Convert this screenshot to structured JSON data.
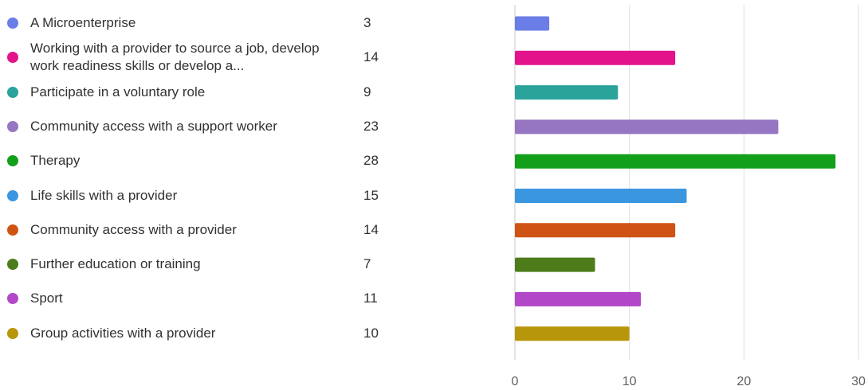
{
  "chart_data": {
    "type": "bar",
    "orientation": "horizontal",
    "categories": [
      "A Microenterprise",
      "Working with a provider to source a job, develop work readiness skills or develop a...",
      "Participate in a voluntary role",
      "Community access with a support worker",
      "Therapy",
      "Life skills with a provider",
      "Community access with a provider",
      "Further education or training",
      "Sport",
      "Group activities with a provider"
    ],
    "values": [
      3,
      14,
      9,
      23,
      28,
      15,
      14,
      7,
      11,
      10
    ],
    "colors": [
      "#6b7de6",
      "#e3138c",
      "#2aa39a",
      "#9675c2",
      "#12a01a",
      "#3b96e0",
      "#cf5414",
      "#4e7c1b",
      "#b247c8",
      "#b8960c"
    ],
    "xlim": [
      0,
      30
    ],
    "xticks": [
      0,
      10,
      20,
      30
    ],
    "grid": true,
    "legend": "left",
    "title": "",
    "xlabel": "",
    "ylabel": ""
  }
}
